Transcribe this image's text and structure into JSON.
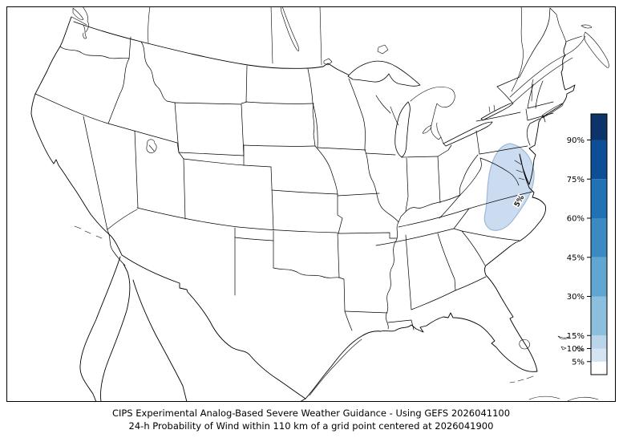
{
  "figure": {
    "background": "#ffffff",
    "frame_color": "#000000"
  },
  "title": {
    "line1": "CIPS Experimental Analog-Based Severe Weather Guidance - Using GEFS 2026041100",
    "line2": "24-h Probability of Wind within 110 km of a grid point centered at 2026041900"
  },
  "map": {
    "type": "conus-contour-map",
    "line_color": "#000000",
    "contour_regions": [
      {
        "label": "5%",
        "value_percent": 5,
        "area": "Mid-Atlantic: Virginia, Maryland, eastern West Virginia, northern North Carolina",
        "fill": "#cbdcf0",
        "edge": "#9db9d8",
        "label_color": "#111111"
      }
    ]
  },
  "colorbar": {
    "unit": "%",
    "orientation": "vertical",
    "boundaries": [
      0,
      5,
      10,
      15,
      30,
      45,
      60,
      75,
      90,
      100
    ],
    "colors": [
      "#ffffff",
      "#d4e4f3",
      "#b8d5ea",
      "#8abfdd",
      "#5fa6d1",
      "#3b8bc2",
      "#2171b5",
      "#0d4f96",
      "#0d3468"
    ],
    "tick_values": [
      5,
      10,
      15,
      30,
      45,
      60,
      75,
      90
    ],
    "tick_labels": [
      "5%",
      "10%",
      "15%",
      "30%",
      "45%",
      "60%",
      "75%",
      "90%"
    ],
    "border_color": "#000000",
    "label_color": "#000000"
  },
  "chart_data": {
    "type": "contour-map",
    "title": "CIPS Experimental Analog-Based Severe Weather Guidance - Using GEFS 2026041100",
    "subtitle": "24-h Probability of Wind within 110 km of a grid point centered at 2026041900",
    "variable": "24-h Probability of Wind within 110 km of a grid point",
    "model": "GEFS",
    "init_time": "2026041100",
    "valid_time": "2026041900",
    "levels_percent": [
      5,
      10,
      15,
      30,
      45,
      60,
      75,
      90
    ],
    "legend_position": "right",
    "regions": [
      {
        "value_percent": 5,
        "area": "Mid-Atlantic (Virginia / Maryland / northern North Carolina)"
      }
    ]
  }
}
